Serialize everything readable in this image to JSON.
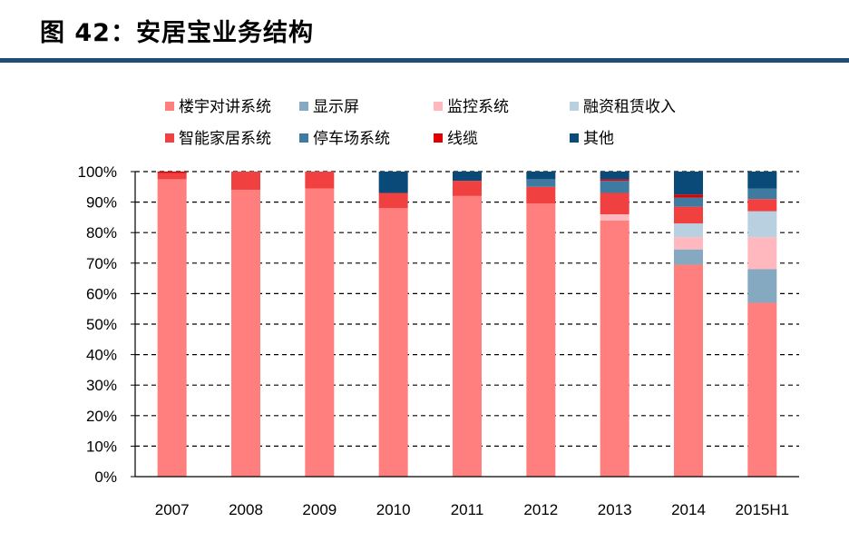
{
  "page": {
    "title": "图 42：安居宝业务结构"
  },
  "chart_data": {
    "type": "bar",
    "stacked": true,
    "title": "",
    "xlabel": "",
    "ylabel": "",
    "ylim": [
      0,
      100
    ],
    "y_ticks": [
      "0%",
      "10%",
      "20%",
      "30%",
      "40%",
      "50%",
      "60%",
      "70%",
      "80%",
      "90%",
      "100%"
    ],
    "grid": "horizontal dashed",
    "legend_position": "top",
    "categories": [
      "2007",
      "2008",
      "2009",
      "2010",
      "2011",
      "2012",
      "2013",
      "2014",
      "2015H1"
    ],
    "series": [
      {
        "name": "楼宇对讲系统",
        "color": "#ff7f7f",
        "values": [
          97.5,
          94,
          94.5,
          88,
          92,
          89.5,
          84,
          69.5,
          57
        ]
      },
      {
        "name": "显示屏",
        "color": "#86a9c2",
        "values": [
          0,
          0,
          0,
          0,
          0,
          0,
          0,
          5,
          11
        ]
      },
      {
        "name": "监控系统",
        "color": "#ffb9be",
        "values": [
          0,
          0,
          0,
          0,
          0,
          0,
          2,
          4,
          10.5
        ]
      },
      {
        "name": "融资租赁收入",
        "color": "#b9d0e0",
        "values": [
          0,
          0,
          0,
          0,
          0,
          0,
          0,
          4.5,
          8.5
        ]
      },
      {
        "name": "智能家居系统",
        "color": "#f04040",
        "values": [
          2,
          6,
          5.5,
          5,
          5,
          5.5,
          7,
          5.5,
          4
        ]
      },
      {
        "name": "停车场系统",
        "color": "#3f7aa0",
        "values": [
          0,
          0,
          0,
          0,
          0,
          2.5,
          4,
          3,
          3.5
        ]
      },
      {
        "name": "线缆",
        "color": "#e00000",
        "values": [
          0.5,
          0,
          0,
          0,
          0,
          0,
          0.5,
          1,
          0
        ]
      },
      {
        "name": "其他",
        "color": "#0a4a78",
        "values": [
          0,
          0,
          0,
          7,
          3,
          2.5,
          2.5,
          7.5,
          5.5
        ]
      }
    ]
  }
}
